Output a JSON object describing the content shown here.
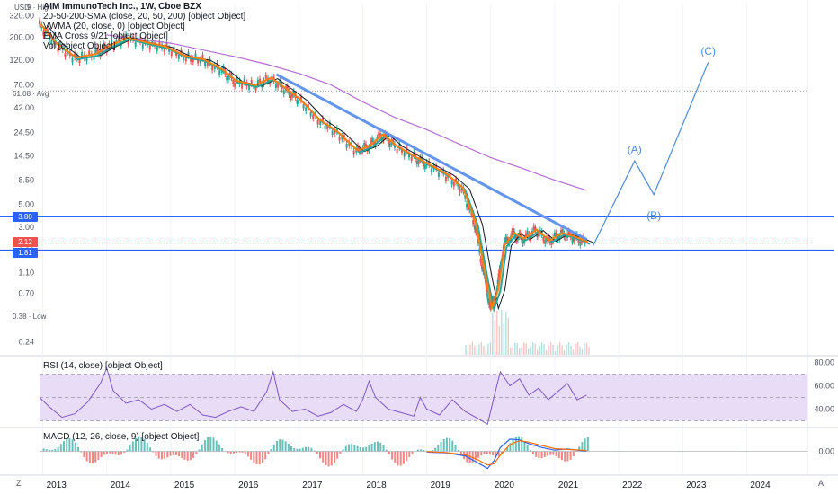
{
  "header": {
    "title": "AIM ImmunoTech Inc., 1W, Cboe BZX",
    "indicators": [
      "20-50-200-SMA (close, 20, 50, 200) [object Object]",
      "VWMA (20, close, 0) [object Object]",
      "EMA Cross 9/21 [object Object]",
      "Vol [object Object]"
    ],
    "currency": "USD",
    "high_label": "9 · High"
  },
  "badges": [
    "3.80",
    "2.12",
    "1.81",
    "61.08 · Avg",
    "0.38 · Low"
  ],
  "panes": {
    "rsi_label": "RSI (14, close) [object Object]",
    "macd_label": "MACD (12, 26, close, 9) [object Object]"
  },
  "corners": {
    "left": "Z",
    "right": "A"
  },
  "colors": {
    "trendline": "#6495ed",
    "level_lines": "#2962ff",
    "sma200": "#b36cd0",
    "vwma": "#131722",
    "ema_fast": "#ff7f0e",
    "ema_slow": "#26a69a",
    "rsi": "#7e57c2",
    "rsi_band": "#e8dcf6",
    "macd": "#2962ff",
    "signal": "#ff6d00",
    "hist_up": "#26a69a",
    "hist_down": "#ef5350",
    "forecast": "#4f8ad6"
  },
  "chart_data": {
    "type": "line",
    "scale": "log",
    "price_axis_ticks": [
      "320.00",
      "200.00",
      "120.00",
      "70.00",
      "42.00",
      "24.50",
      "14.50",
      "8.50",
      "5.00",
      "3.00",
      "1.80",
      "1.10",
      "0.70",
      "0.24"
    ],
    "x_axis_ticks": [
      "2013",
      "2014",
      "2015",
      "2016",
      "2017",
      "2018",
      "2019",
      "2020",
      "2021",
      "2022",
      "2023",
      "2024"
    ],
    "ylim": [
      0.18,
      420
    ],
    "xlim": [
      2012.95,
      2024.95
    ],
    "price_series": [
      [
        2012.95,
        260
      ],
      [
        2013.2,
        170
      ],
      [
        2013.5,
        125
      ],
      [
        2013.8,
        135
      ],
      [
        2014.0,
        160
      ],
      [
        2014.3,
        195
      ],
      [
        2014.6,
        175
      ],
      [
        2014.9,
        160
      ],
      [
        2015.2,
        130
      ],
      [
        2015.5,
        120
      ],
      [
        2015.8,
        95
      ],
      [
        2016.0,
        75
      ],
      [
        2016.3,
        68
      ],
      [
        2016.55,
        80
      ],
      [
        2016.8,
        62
      ],
      [
        2017.0,
        50
      ],
      [
        2017.3,
        32
      ],
      [
        2017.6,
        24
      ],
      [
        2017.9,
        16
      ],
      [
        2018.1,
        18
      ],
      [
        2018.3,
        23
      ],
      [
        2018.5,
        18
      ],
      [
        2018.8,
        14
      ],
      [
        2019.0,
        12
      ],
      [
        2019.3,
        9.5
      ],
      [
        2019.55,
        7
      ],
      [
        2019.75,
        3.2
      ],
      [
        2019.9,
        1.0
      ],
      [
        2020.0,
        0.5
      ],
      [
        2020.1,
        0.75
      ],
      [
        2020.2,
        2.0
      ],
      [
        2020.35,
        2.6
      ],
      [
        2020.5,
        2.3
      ],
      [
        2020.7,
        2.8
      ],
      [
        2020.9,
        2.2
      ],
      [
        2021.1,
        2.6
      ],
      [
        2021.3,
        2.4
      ],
      [
        2021.5,
        2.12
      ]
    ],
    "sma200_series": [
      [
        2014.0,
        210
      ],
      [
        2015.0,
        175
      ],
      [
        2016.0,
        130
      ],
      [
        2016.5,
        110
      ],
      [
        2017.0,
        90
      ],
      [
        2017.5,
        70
      ],
      [
        2018.0,
        48
      ],
      [
        2018.5,
        34
      ],
      [
        2019.0,
        26
      ],
      [
        2019.5,
        19
      ],
      [
        2020.0,
        14
      ],
      [
        2020.5,
        11
      ],
      [
        2021.0,
        8.5
      ],
      [
        2021.5,
        6.8
      ]
    ],
    "levels": [
      3.8,
      1.81
    ],
    "trendline": [
      [
        2016.65,
        88
      ],
      [
        2021.5,
        2.3
      ]
    ],
    "forecast_path": [
      [
        2021.6,
        2.0
      ],
      [
        2022.25,
        13
      ],
      [
        2022.55,
        6.2
      ],
      [
        2023.4,
        115
      ]
    ],
    "wave_labels": [
      {
        "label": "(A)",
        "x": 2022.25,
        "y": 15.5
      },
      {
        "label": "(B)",
        "x": 2022.55,
        "y": 3.6
      },
      {
        "label": "(C)",
        "x": 2023.4,
        "y": 135
      }
    ],
    "rsi": {
      "ticks": [
        "80.00",
        "60.00",
        "40.00"
      ],
      "ylim": [
        25,
        85
      ],
      "band": [
        30,
        70
      ],
      "values": [
        [
          2012.95,
          50
        ],
        [
          2013.1,
          42
        ],
        [
          2013.3,
          33
        ],
        [
          2013.5,
          36
        ],
        [
          2013.7,
          46
        ],
        [
          2013.9,
          62
        ],
        [
          2014.0,
          75
        ],
        [
          2014.1,
          56
        ],
        [
          2014.3,
          45
        ],
        [
          2014.5,
          48
        ],
        [
          2014.7,
          40
        ],
        [
          2014.9,
          44
        ],
        [
          2015.1,
          38
        ],
        [
          2015.3,
          44
        ],
        [
          2015.5,
          35
        ],
        [
          2015.7,
          33
        ],
        [
          2015.9,
          38
        ],
        [
          2016.1,
          42
        ],
        [
          2016.3,
          38
        ],
        [
          2016.5,
          55
        ],
        [
          2016.6,
          72
        ],
        [
          2016.7,
          48
        ],
        [
          2016.9,
          38
        ],
        [
          2017.1,
          40
        ],
        [
          2017.3,
          34
        ],
        [
          2017.5,
          37
        ],
        [
          2017.7,
          44
        ],
        [
          2017.9,
          38
        ],
        [
          2018.0,
          48
        ],
        [
          2018.1,
          64
        ],
        [
          2018.2,
          50
        ],
        [
          2018.4,
          40
        ],
        [
          2018.6,
          37
        ],
        [
          2018.8,
          34
        ],
        [
          2018.9,
          50
        ],
        [
          2019.0,
          40
        ],
        [
          2019.2,
          35
        ],
        [
          2019.4,
          48
        ],
        [
          2019.6,
          38
        ],
        [
          2019.8,
          32
        ],
        [
          2019.95,
          27
        ],
        [
          2020.05,
          50
        ],
        [
          2020.15,
          72
        ],
        [
          2020.3,
          60
        ],
        [
          2020.45,
          66
        ],
        [
          2020.6,
          52
        ],
        [
          2020.75,
          58
        ],
        [
          2020.9,
          48
        ],
        [
          2021.05,
          55
        ],
        [
          2021.2,
          62
        ],
        [
          2021.35,
          48
        ],
        [
          2021.5,
          52
        ]
      ]
    },
    "macd": {
      "ticks": [
        "0.00"
      ],
      "ylim": [
        -6,
        6
      ],
      "macd_values": [
        [
          2019.0,
          -0.2
        ],
        [
          2019.3,
          -0.4
        ],
        [
          2019.6,
          -1.2
        ],
        [
          2019.8,
          -3.0
        ],
        [
          2019.95,
          -4.5
        ],
        [
          2020.05,
          -2.5
        ],
        [
          2020.15,
          1.0
        ],
        [
          2020.3,
          3.2
        ],
        [
          2020.45,
          3.0
        ],
        [
          2020.6,
          2.0
        ],
        [
          2020.8,
          1.0
        ],
        [
          2021.0,
          0.3
        ],
        [
          2021.2,
          0.6
        ],
        [
          2021.4,
          0.2
        ],
        [
          2021.5,
          0.1
        ]
      ],
      "signal_values": [
        [
          2019.0,
          -0.1
        ],
        [
          2019.3,
          -0.3
        ],
        [
          2019.6,
          -0.9
        ],
        [
          2019.8,
          -2.2
        ],
        [
          2019.95,
          -3.6
        ],
        [
          2020.05,
          -3.3
        ],
        [
          2020.15,
          -1.0
        ],
        [
          2020.3,
          1.8
        ],
        [
          2020.45,
          2.8
        ],
        [
          2020.6,
          2.4
        ],
        [
          2020.8,
          1.5
        ],
        [
          2021.0,
          0.7
        ],
        [
          2021.2,
          0.5
        ],
        [
          2021.4,
          0.3
        ],
        [
          2021.5,
          0.2
        ]
      ]
    }
  }
}
